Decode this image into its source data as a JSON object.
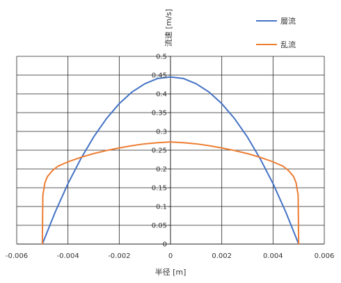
{
  "chart_data": {
    "type": "line",
    "title": "",
    "xlabel": "半径 [m]",
    "ylabel": "流速 [m/s]",
    "xlim": [
      -0.006,
      0.006
    ],
    "ylim": [
      0,
      0.5
    ],
    "x_ticks": [
      -0.006,
      -0.004,
      -0.002,
      0,
      0.002,
      0.004,
      0.006
    ],
    "y_ticks": [
      0,
      0.05,
      0.1,
      0.15,
      0.2,
      0.25,
      0.3,
      0.35,
      0.4,
      0.45,
      0.5
    ],
    "x_tick_labels": [
      "-0.006",
      "-0.004",
      "-0.002",
      "0",
      "0.002",
      "0.004",
      "0.006"
    ],
    "y_tick_labels": [
      "0",
      "0.05",
      "0.1",
      "0.15",
      "0.2",
      "0.25",
      "0.3",
      "0.35",
      "0.4",
      "0.45",
      "0.5"
    ],
    "grid": true,
    "legend_position": "top-right, outside plot",
    "series": [
      {
        "name": "層流",
        "color": "#4472C4",
        "x": [
          -0.005,
          -0.0045,
          -0.004,
          -0.0035,
          -0.003,
          -0.0025,
          -0.002,
          -0.0015,
          -0.001,
          -0.0005,
          0,
          0.0005,
          0.001,
          0.0015,
          0.002,
          0.0025,
          0.003,
          0.0035,
          0.004,
          0.0045,
          0.005
        ],
        "y": [
          0,
          0.085,
          0.161,
          0.227,
          0.285,
          0.334,
          0.374,
          0.405,
          0.427,
          0.441,
          0.445,
          0.441,
          0.427,
          0.405,
          0.374,
          0.334,
          0.285,
          0.227,
          0.161,
          0.085,
          0
        ]
      },
      {
        "name": "乱流",
        "color": "#ED7D31",
        "x": [
          -0.005,
          -0.00498,
          -0.0049,
          -0.0048,
          -0.0046,
          -0.0044,
          -0.004,
          -0.0035,
          -0.003,
          -0.0025,
          -0.002,
          -0.0015,
          -0.001,
          -0.0005,
          0,
          0.0005,
          0.001,
          0.0015,
          0.002,
          0.0025,
          0.003,
          0.0035,
          0.004,
          0.0044,
          0.0046,
          0.0048,
          0.0049,
          0.00498,
          0.005
        ],
        "y": [
          0,
          0.13,
          0.163,
          0.18,
          0.196,
          0.207,
          0.219,
          0.231,
          0.241,
          0.249,
          0.256,
          0.262,
          0.267,
          0.27,
          0.272,
          0.27,
          0.267,
          0.262,
          0.256,
          0.249,
          0.241,
          0.231,
          0.219,
          0.207,
          0.196,
          0.18,
          0.163,
          0.13,
          0
        ]
      }
    ]
  }
}
